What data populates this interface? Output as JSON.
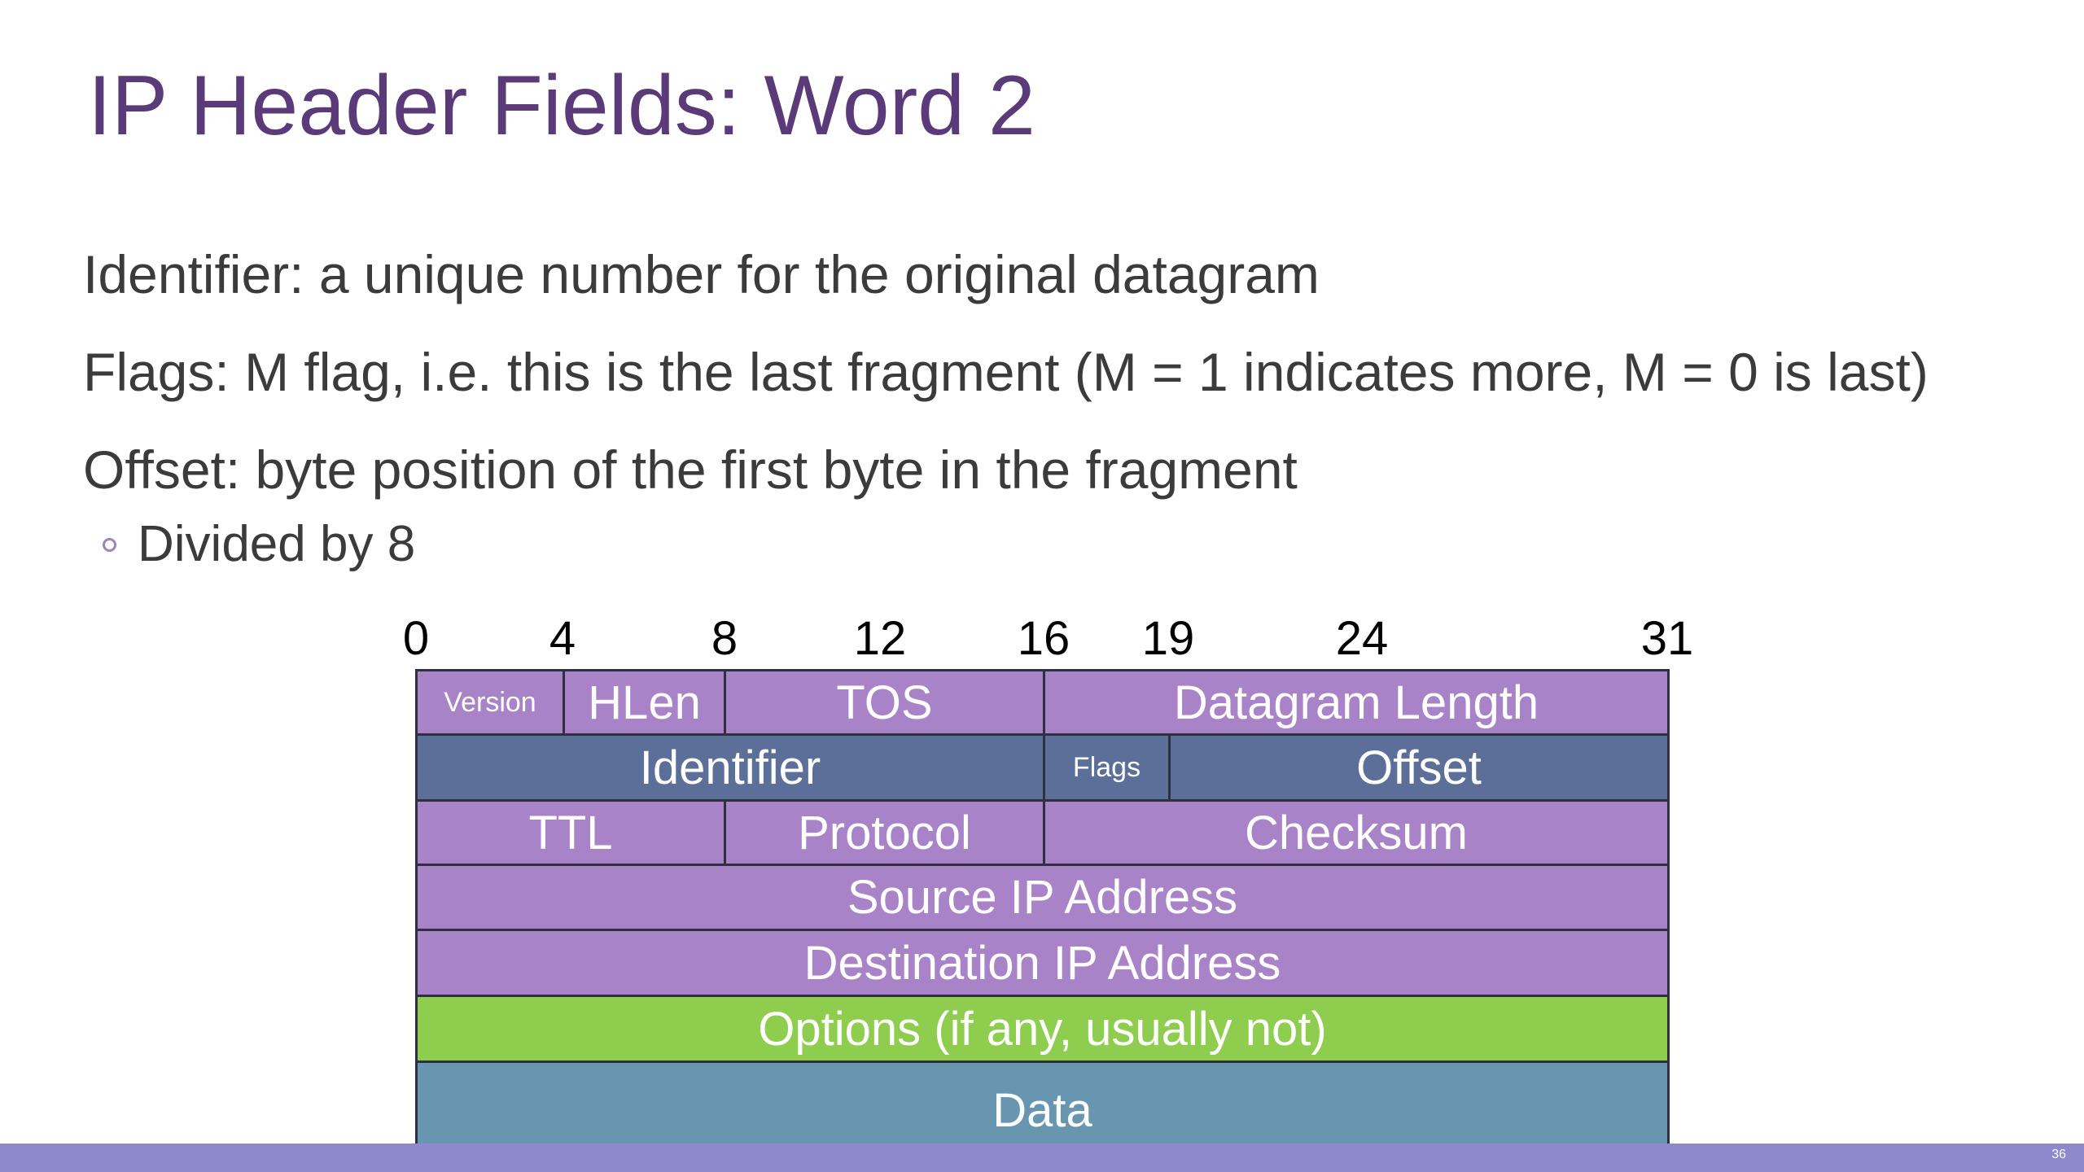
{
  "slide": {
    "title": "IP Header Fields: Word 2",
    "bullets": [
      "Identifier: a unique number for the original datagram",
      "Flags: M flag, i.e. this is the last fragment (M = 1 indicates more, M = 0 is last)",
      "Offset: byte position of the first byte in the fragment"
    ],
    "sub_bullet": "Divided by 8",
    "slide_number": "36"
  },
  "diagram": {
    "bit_labels": [
      "0",
      "4",
      "8",
      "12",
      "16",
      "19",
      "24",
      "31"
    ],
    "rows": [
      {
        "fields": [
          "Version",
          "HLen",
          "TOS",
          "Datagram Length"
        ]
      },
      {
        "fields": [
          "Identifier",
          "Flags",
          "Offset"
        ]
      },
      {
        "fields": [
          "TTL",
          "Protocol",
          "Checksum"
        ]
      },
      {
        "fields": [
          "Source IP Address"
        ]
      },
      {
        "fields": [
          "Destination IP Address"
        ]
      },
      {
        "fields": [
          "Options (if any, usually not)"
        ]
      },
      {
        "fields": [
          "Data"
        ]
      }
    ],
    "colors": {
      "header_purple": "#a883c8",
      "word2_slate": "#5b6f98",
      "options_green": "#8ecd4d",
      "data_teal": "#6896b0",
      "title": "#5b3a7a"
    }
  }
}
